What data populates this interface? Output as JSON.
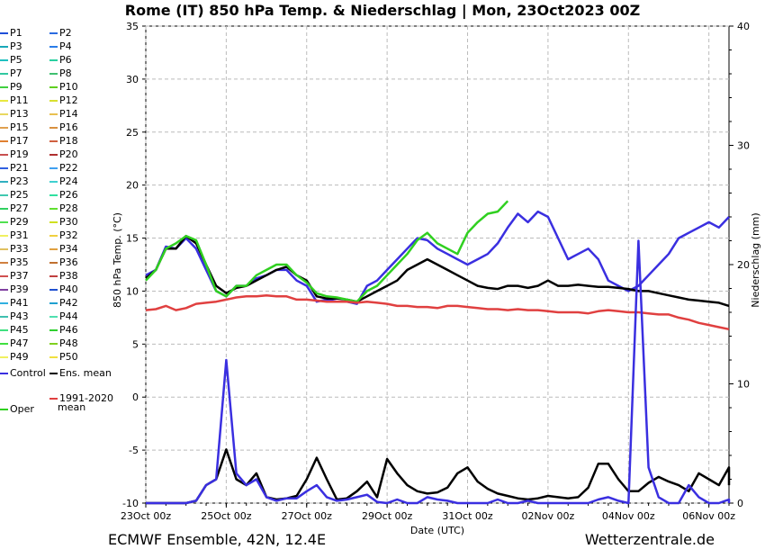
{
  "title": "Rome  (IT)  850 hPa Temp. & Niederschlag | Mon, 23Oct2023 00Z",
  "footer": {
    "left": "ECMWF Ensemble, 42N, 12.4E",
    "right": "Wetterzentrale.de"
  },
  "legend": {
    "members": [
      "P1",
      "P2",
      "P3",
      "P4",
      "P5",
      "P6",
      "P7",
      "P8",
      "P9",
      "P10",
      "P11",
      "P12",
      "P13",
      "P14",
      "P15",
      "P16",
      "P17",
      "P18",
      "P19",
      "P20",
      "P21",
      "P22",
      "P23",
      "P24",
      "P25",
      "P26",
      "P27",
      "P28",
      "P29",
      "P30",
      "P31",
      "P32",
      "P33",
      "P34",
      "P35",
      "P36",
      "P37",
      "P38",
      "P39",
      "P40",
      "P41",
      "P42",
      "P43",
      "P44",
      "P45",
      "P46",
      "P47",
      "P48",
      "P49",
      "P50"
    ],
    "member_colors": [
      "#1f4fd8",
      "#2b6be0",
      "#18a8b8",
      "#2a7ce8",
      "#20c0c0",
      "#2ad0a0",
      "#30c8a0",
      "#40c070",
      "#40d040",
      "#60d020",
      "#e8e840",
      "#d8e030",
      "#e8d860",
      "#e8c050",
      "#e0a050",
      "#d89040",
      "#e08030",
      "#d06040",
      "#c85050",
      "#b03030",
      "#3060e0",
      "#40a0f0",
      "#30b0c0",
      "#40d0d0",
      "#40c8b0",
      "#30e0a0",
      "#30d060",
      "#60e030",
      "#50e050",
      "#d0e020",
      "#f0f060",
      "#f0d040",
      "#e0c060",
      "#e0a040",
      "#d08040",
      "#c07030",
      "#d05050",
      "#c04040",
      "#8040a0",
      "#2050d0",
      "#30b0e0",
      "#20a0d0",
      "#40c0b0",
      "#50e0b0",
      "#40e080",
      "#30d030",
      "#40e040",
      "#80d020",
      "#f0f060",
      "#f0e040"
    ],
    "control": "Control",
    "ens_mean": "Ens. mean",
    "climate_mean": [
      "1991-2020",
      "mean"
    ],
    "oper": "Oper",
    "colors": {
      "control": "#3a2fe0",
      "ens_mean": "#000000",
      "climate_mean": "#e04040",
      "oper": "#30d020"
    }
  },
  "chart_data": {
    "type": "line",
    "title": "Rome  (IT)  850 hPa Temp. & Niederschlag | Mon, 23Oct2023 00Z",
    "xlabel": "Date (UTC)",
    "ylabel": "850 hPa Temp. (°C)",
    "y2label": "Niederschlag (mm)",
    "xtick_labels": [
      "23Oct 00z",
      "25Oct 00z",
      "27Oct 00z",
      "29Oct 00z",
      "31Oct 00z",
      "02Nov 00z",
      "04Nov 00z",
      "06Nov 00z"
    ],
    "x_range_hours": [
      0,
      348
    ],
    "x_step_hours": 6,
    "ylim": [
      -10,
      35
    ],
    "yticks": [
      -10,
      -5,
      0,
      5,
      10,
      15,
      20,
      25,
      30,
      35
    ],
    "y2lim": [
      0,
      40
    ],
    "y2ticks": [
      0,
      10,
      20,
      30,
      40
    ],
    "grid": true,
    "series": [
      {
        "name": "Control",
        "color": "#3a2fe0",
        "width": 2.5,
        "values": [
          11.5,
          12.0,
          14.2,
          14.0,
          15.0,
          14.0,
          12.0,
          10.0,
          9.5,
          10.5,
          10.5,
          11.2,
          11.5,
          12.0,
          12.0,
          11.0,
          10.5,
          9.0,
          9.2,
          9.0,
          9.0,
          8.8,
          10.5,
          11.0,
          12.0,
          13.0,
          14.0,
          15.0,
          14.8,
          14.0,
          13.5,
          13.0,
          12.5,
          13.0,
          13.5,
          14.5,
          16.0,
          17.3,
          16.5,
          17.5,
          17.0,
          15.0,
          13.0,
          13.5,
          14.0,
          13.0,
          11.0,
          10.5,
          10.0,
          10.5,
          11.5,
          12.5,
          13.5,
          15.0,
          15.5,
          16.0,
          16.5,
          16.0,
          17.0
        ]
      },
      {
        "name": "Ens. mean",
        "color": "#000000",
        "width": 2.5,
        "values": [
          11.2,
          12.0,
          14.0,
          14.0,
          15.2,
          14.5,
          12.5,
          10.5,
          9.8,
          10.3,
          10.5,
          11.0,
          11.5,
          12.0,
          12.3,
          11.5,
          11.0,
          9.5,
          9.3,
          9.3,
          9.2,
          9.0,
          9.5,
          10.0,
          10.5,
          11.0,
          12.0,
          12.5,
          13.0,
          12.5,
          12.0,
          11.5,
          11.0,
          10.5,
          10.3,
          10.2,
          10.5,
          10.5,
          10.3,
          10.5,
          11.0,
          10.5,
          10.5,
          10.6,
          10.5,
          10.4,
          10.4,
          10.3,
          10.2,
          10.0,
          10.0,
          9.8,
          9.6,
          9.4,
          9.2,
          9.1,
          9.0,
          8.9,
          8.6
        ]
      },
      {
        "name": "Oper",
        "color": "#30d020",
        "width": 2.5,
        "values": [
          11.0,
          12.0,
          14.0,
          14.5,
          15.2,
          14.8,
          12.5,
          10.0,
          9.5,
          10.5,
          10.5,
          11.5,
          12.0,
          12.5,
          12.5,
          11.5,
          10.8,
          9.8,
          9.5,
          9.4,
          9.2,
          9.0,
          10.0,
          10.5,
          11.5,
          12.5,
          13.5,
          14.8,
          15.5,
          14.5,
          14.0,
          13.5,
          15.5,
          16.5,
          17.3,
          17.5,
          18.5
        ]
      },
      {
        "name": "1991-2020 mean",
        "color": "#e04040",
        "width": 2.5,
        "values": [
          8.2,
          8.3,
          8.6,
          8.2,
          8.4,
          8.8,
          8.9,
          9.0,
          9.2,
          9.4,
          9.5,
          9.5,
          9.6,
          9.5,
          9.5,
          9.2,
          9.2,
          9.1,
          9.0,
          9.0,
          9.0,
          8.9,
          9.0,
          8.9,
          8.8,
          8.6,
          8.6,
          8.5,
          8.5,
          8.4,
          8.6,
          8.6,
          8.5,
          8.4,
          8.3,
          8.3,
          8.2,
          8.3,
          8.2,
          8.2,
          8.1,
          8.0,
          8.0,
          8.0,
          7.9,
          8.1,
          8.2,
          8.1,
          8.0,
          8.0,
          7.9,
          7.8,
          7.8,
          7.5,
          7.3,
          7.0,
          6.8,
          6.6,
          6.4
        ]
      },
      {
        "name": "Ens. mean precipitation",
        "axis": "y2",
        "color": "#000000",
        "width": 2.5,
        "values": [
          0,
          0,
          0,
          0,
          0,
          0.2,
          1.5,
          2.0,
          4.5,
          2.0,
          1.5,
          2.5,
          0.5,
          0.3,
          0.4,
          0.6,
          2.0,
          3.8,
          2.0,
          0.3,
          0.4,
          1.0,
          1.8,
          0.5,
          3.7,
          2.5,
          1.5,
          1.0,
          0.8,
          0.9,
          1.3,
          2.5,
          3.0,
          1.8,
          1.2,
          0.8,
          0.6,
          0.4,
          0.3,
          0.4,
          0.6,
          0.5,
          0.4,
          0.5,
          1.3,
          3.3,
          3.3,
          2.0,
          1.0,
          1.0,
          1.7,
          2.2,
          1.8,
          1.5,
          1.0,
          2.5,
          2.0,
          1.5,
          3.0,
          1.5
        ]
      },
      {
        "name": "Control precipitation",
        "axis": "y2",
        "color": "#3a2fe0",
        "width": 2.5,
        "values": [
          0,
          0,
          0,
          0,
          0,
          0.2,
          1.5,
          2.0,
          12.0,
          2.5,
          1.5,
          2.0,
          0.5,
          0.2,
          0.4,
          0.4,
          1.0,
          1.5,
          0.5,
          0.2,
          0.3,
          0.5,
          0.7,
          0.1,
          0,
          0.3,
          0,
          0,
          0.5,
          0.3,
          0.2,
          0,
          0,
          0,
          0,
          0.3,
          0,
          0,
          0.2,
          0,
          0,
          0,
          0,
          0,
          0,
          0.3,
          0.5,
          0.2,
          0,
          22.0,
          3.0,
          0.5,
          0,
          0,
          1.5,
          0.5,
          0,
          0,
          0.3,
          0
        ]
      }
    ]
  }
}
